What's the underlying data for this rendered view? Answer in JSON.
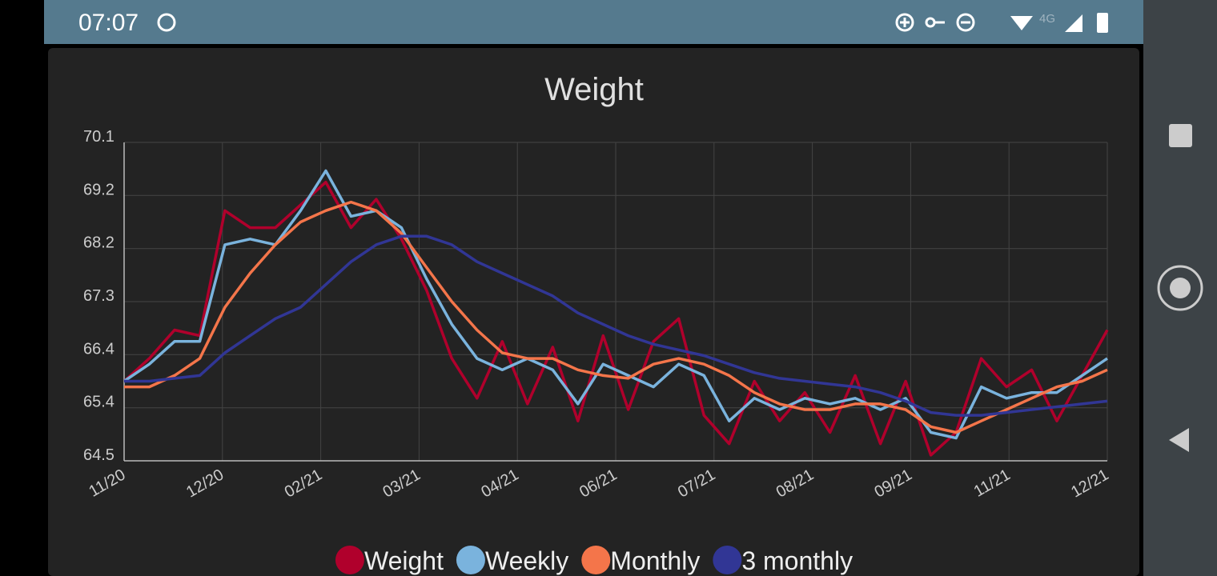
{
  "status_bar": {
    "time": "07:07",
    "network": "4G"
  },
  "chart_data": {
    "type": "line",
    "title": "Weight",
    "x": [
      0,
      10,
      20,
      30,
      40,
      50,
      60,
      70,
      80,
      90,
      100,
      110,
      120,
      130,
      140,
      150,
      160,
      170,
      180,
      190,
      200,
      210,
      220,
      230,
      240,
      250,
      260,
      270,
      280,
      290,
      300,
      310,
      320,
      330,
      340,
      350,
      360,
      370,
      380,
      390
    ],
    "xlim": [
      0,
      390
    ],
    "xticks": [
      {
        "value": 0,
        "label": "11/20"
      },
      {
        "value": 39,
        "label": "12/20"
      },
      {
        "value": 78,
        "label": "02/21"
      },
      {
        "value": 117,
        "label": "03/21"
      },
      {
        "value": 156,
        "label": "04/21"
      },
      {
        "value": 195,
        "label": "06/21"
      },
      {
        "value": 234,
        "label": "07/21"
      },
      {
        "value": 273,
        "label": "08/21"
      },
      {
        "value": 312,
        "label": "09/21"
      },
      {
        "value": 351,
        "label": "11/21"
      },
      {
        "value": 390,
        "label": "12/21"
      }
    ],
    "ylim": [
      64.5,
      70.1
    ],
    "yticks": [
      64.5,
      {
        "value": 65.433,
        "label": "65.4"
      },
      {
        "value": 66.367,
        "label": "66.4"
      },
      67.3,
      {
        "value": 68.233,
        "label": "68.2"
      },
      {
        "value": 69.167,
        "label": "69.2"
      },
      70.1
    ],
    "grid": true,
    "legend": "bottom",
    "series": [
      {
        "name": "Weight",
        "color": "#b0002c",
        "values": [
          65.9,
          66.3,
          66.8,
          66.7,
          68.9,
          68.6,
          68.6,
          69.0,
          69.4,
          68.6,
          69.1,
          68.4,
          67.5,
          66.3,
          65.6,
          66.6,
          65.5,
          66.5,
          65.2,
          66.7,
          65.4,
          66.6,
          67.0,
          65.3,
          64.8,
          65.9,
          65.2,
          65.7,
          65.0,
          66.0,
          64.8,
          65.9,
          64.6,
          65.0,
          66.3,
          65.8,
          66.1,
          65.2,
          66.0,
          66.8
        ]
      },
      {
        "name": "Weekly",
        "color": "#7ab3dd",
        "values": [
          65.9,
          66.2,
          66.6,
          66.6,
          68.3,
          68.4,
          68.3,
          68.9,
          69.6,
          68.8,
          68.9,
          68.6,
          67.7,
          66.9,
          66.3,
          66.1,
          66.3,
          66.1,
          65.5,
          66.2,
          66.0,
          65.8,
          66.2,
          66.0,
          65.2,
          65.6,
          65.4,
          65.6,
          65.5,
          65.6,
          65.4,
          65.6,
          65.0,
          64.9,
          65.8,
          65.6,
          65.7,
          65.7,
          66.0,
          66.3
        ]
      },
      {
        "name": "Monthly",
        "color": "#f4754a",
        "values": [
          65.8,
          65.8,
          66.0,
          66.3,
          67.2,
          67.8,
          68.3,
          68.7,
          68.9,
          69.05,
          68.9,
          68.5,
          67.9,
          67.3,
          66.8,
          66.4,
          66.3,
          66.3,
          66.1,
          66.0,
          65.95,
          66.2,
          66.3,
          66.2,
          66.0,
          65.7,
          65.5,
          65.4,
          65.4,
          65.5,
          65.5,
          65.4,
          65.1,
          65.0,
          65.2,
          65.4,
          65.6,
          65.8,
          65.9,
          66.1
        ]
      },
      {
        "name": "3 monthly",
        "color": "#313695",
        "values": [
          65.9,
          65.9,
          65.95,
          66.0,
          66.4,
          66.7,
          67.0,
          67.2,
          67.6,
          68.0,
          68.3,
          68.45,
          68.45,
          68.3,
          68.0,
          67.8,
          67.6,
          67.4,
          67.1,
          66.9,
          66.7,
          66.55,
          66.45,
          66.35,
          66.2,
          66.05,
          65.95,
          65.9,
          65.85,
          65.8,
          65.7,
          65.55,
          65.35,
          65.3,
          65.3,
          65.35,
          65.4,
          65.45,
          65.5,
          65.55
        ]
      }
    ]
  }
}
